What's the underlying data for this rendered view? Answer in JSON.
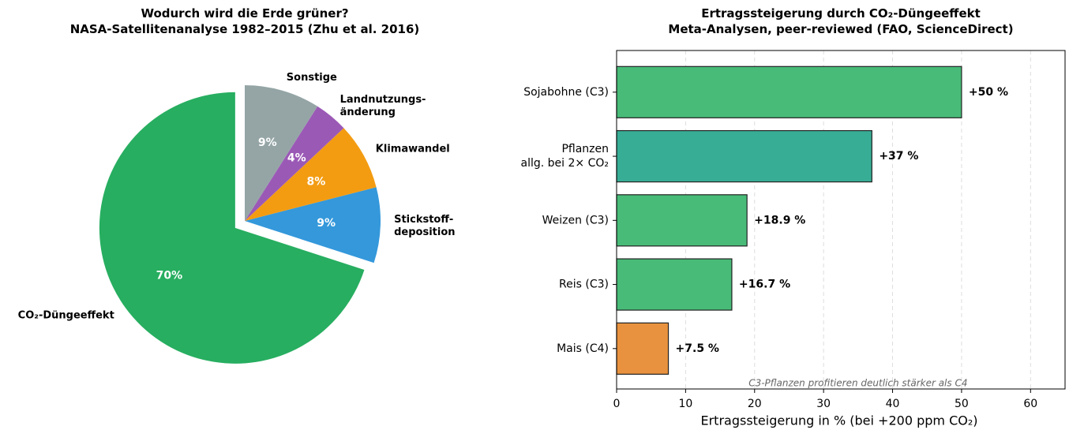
{
  "chart_data": [
    {
      "type": "pie",
      "title": "Wodurch wird die Erde grüner?\nNASA-Satellitenanalyse 1982–2015 (Zhu et al. 2016)",
      "categories": [
        "CO₂-Düngeeffekt",
        "Stickstoff-\ndeposition",
        "Klimawandel",
        "Landnutzungs-\nänderung",
        "Sonstige"
      ],
      "values": [
        70,
        9,
        8,
        4,
        9
      ],
      "value_labels": [
        "70%",
        "9%",
        "8%",
        "4%",
        "9%"
      ],
      "colors": [
        "#27ae60",
        "#3498db",
        "#f39c12",
        "#9b59b6",
        "#95a5a6"
      ],
      "explode": [
        true,
        false,
        false,
        false,
        false
      ]
    },
    {
      "type": "barh",
      "title": "Ertragssteigerung durch CO₂-Düngeeffekt\nMeta-Analysen, peer-reviewed (FAO, ScienceDirect)",
      "categories": [
        "Sojabohne (C3)",
        "Pflanzen\nallg. bei 2× CO₂",
        "Weizen (C3)",
        "Reis (C3)",
        "Mais (C4)"
      ],
      "values": [
        50,
        37,
        18.9,
        16.7,
        7.5
      ],
      "value_labels": [
        "+50 %",
        "+37 %",
        "+18.9 %",
        "+16.7 %",
        "+7.5 %"
      ],
      "colors": [
        "#48bb78",
        "#38ad96",
        "#48bb78",
        "#48bb78",
        "#e8923f"
      ],
      "xlim": [
        0,
        65
      ],
      "xticks": [
        0,
        10,
        20,
        30,
        40,
        50,
        60
      ],
      "grid": true,
      "xlabel": "Ertragssteigerung in % (bei +200 ppm CO₂)",
      "annotation": "C3-Pflanzen profitieren deutlich stärker als C4"
    }
  ]
}
